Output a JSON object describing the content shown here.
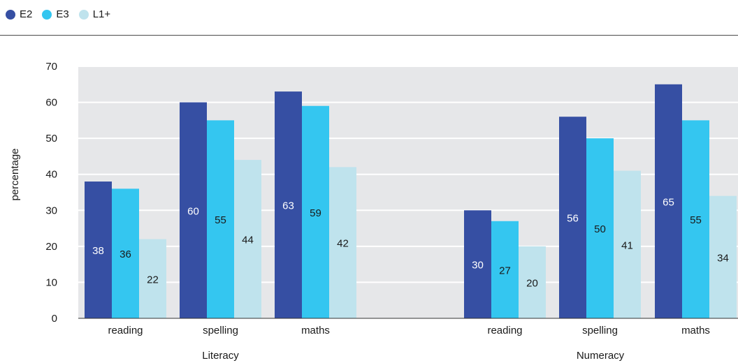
{
  "chart_data": {
    "type": "bar",
    "ylabel": "percentage",
    "ylim": [
      0,
      70
    ],
    "yticks": [
      0,
      10,
      20,
      30,
      40,
      50,
      60,
      70
    ],
    "grid": true,
    "legend_position": "top-left",
    "groups": [
      {
        "label": "Literacy",
        "categories": [
          "reading",
          "spelling",
          "maths"
        ]
      },
      {
        "label": "Numeracy",
        "categories": [
          "reading",
          "spelling",
          "maths"
        ]
      }
    ],
    "series": [
      {
        "name": "E2",
        "color": "#364fa3",
        "values": [
          38,
          60,
          63,
          30,
          56,
          65
        ],
        "label_color": "#ffffff"
      },
      {
        "name": "E3",
        "color": "#34c6f0",
        "values": [
          36,
          55,
          59,
          27,
          50,
          55
        ],
        "label_color": "#1a1a1a"
      },
      {
        "name": "L1+",
        "color": "#bfe3ed",
        "values": [
          22,
          44,
          42,
          20,
          41,
          34
        ],
        "label_color": "#1a1a1a"
      }
    ],
    "plot_background": "#e6e7e9",
    "grid_color": "#ffffff"
  }
}
